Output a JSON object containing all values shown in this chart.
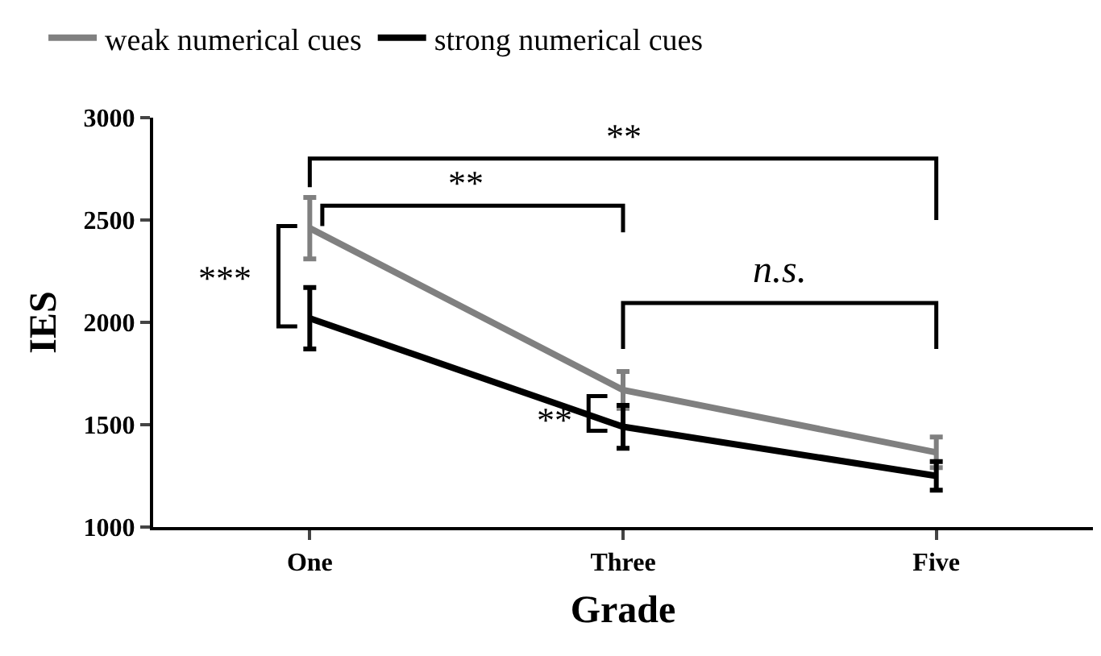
{
  "chart_data": {
    "type": "line",
    "xlabel": "Grade",
    "ylabel": "IES",
    "categories": [
      "One",
      "Three",
      "Five"
    ],
    "series": [
      {
        "name": "weak numerical cues",
        "color": "#808080",
        "values": [
          2460,
          1670,
          1365
        ],
        "errors": [
          150,
          90,
          75
        ]
      },
      {
        "name": "strong numerical cues",
        "color": "#000000",
        "values": [
          2020,
          1490,
          1250
        ],
        "errors": [
          150,
          105,
          70
        ]
      }
    ],
    "ylim": [
      1000,
      3000
    ],
    "yticks": [
      1000,
      1500,
      2000,
      2500,
      3000
    ],
    "grid": false,
    "legend": "top left",
    "marker": "none",
    "line_style": "solid",
    "annotations": [
      "**",
      "**",
      "***",
      "**",
      "n.s."
    ]
  }
}
